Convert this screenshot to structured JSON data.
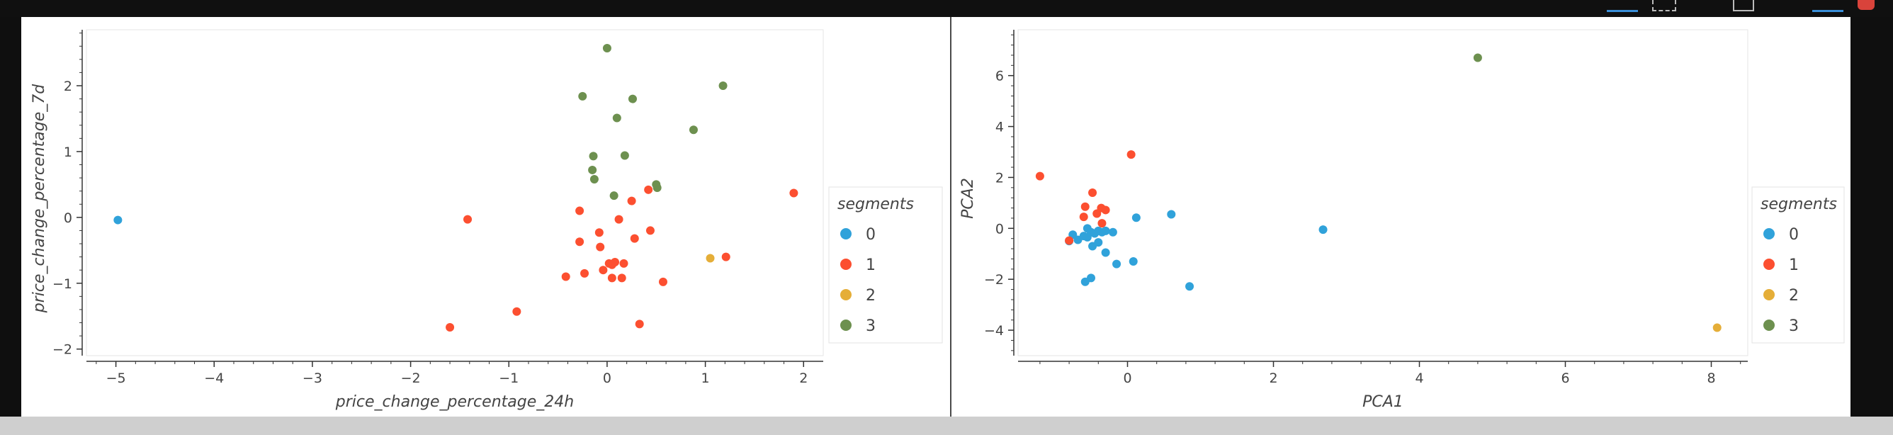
{
  "chart_data": [
    {
      "type": "scatter",
      "title": "",
      "xlabel": "price_change_percentage_24h",
      "ylabel": "price_change_percentage_7d",
      "xlim": [
        -5.3,
        2.2
      ],
      "ylim": [
        -2.1,
        2.85
      ],
      "xticks": [
        -5,
        -4,
        -3,
        -2,
        -1,
        0,
        1,
        2
      ],
      "yticks": [
        -2,
        -1,
        0,
        1,
        2
      ],
      "legend": {
        "title": "segments",
        "position": "right"
      },
      "series": [
        {
          "name": "0",
          "color": "#30a2da",
          "points": [
            [
              -4.98,
              -0.04
            ]
          ]
        },
        {
          "name": "1",
          "color": "#fc4f30",
          "points": [
            [
              -1.42,
              -0.03
            ],
            [
              -1.6,
              -1.67
            ],
            [
              -0.92,
              -1.43
            ],
            [
              -0.42,
              -0.9
            ],
            [
              -0.23,
              -0.85
            ],
            [
              -0.28,
              0.1
            ],
            [
              -0.28,
              -0.37
            ],
            [
              -0.08,
              -0.23
            ],
            [
              -0.07,
              -0.45
            ],
            [
              -0.04,
              -0.8
            ],
            [
              0.02,
              -0.7
            ],
            [
              0.05,
              -0.72
            ],
            [
              0.08,
              -0.68
            ],
            [
              0.05,
              -0.92
            ],
            [
              0.12,
              -0.03
            ],
            [
              0.15,
              -0.92
            ],
            [
              0.17,
              -0.7
            ],
            [
              0.25,
              0.25
            ],
            [
              0.28,
              -0.32
            ],
            [
              0.33,
              -1.62
            ],
            [
              0.42,
              0.42
            ],
            [
              0.44,
              -0.2
            ],
            [
              0.57,
              -0.98
            ],
            [
              1.21,
              -0.6
            ],
            [
              1.9,
              0.37
            ]
          ]
        },
        {
          "name": "2",
          "color": "#e5ae38",
          "points": [
            [
              1.05,
              -0.62
            ]
          ]
        },
        {
          "name": "3",
          "color": "#6d904f",
          "points": [
            [
              0.0,
              2.57
            ],
            [
              -0.25,
              1.84
            ],
            [
              0.26,
              1.8
            ],
            [
              0.1,
              1.51
            ],
            [
              1.18,
              2.0
            ],
            [
              0.88,
              1.33
            ],
            [
              -0.14,
              0.93
            ],
            [
              0.18,
              0.94
            ],
            [
              -0.15,
              0.72
            ],
            [
              -0.13,
              0.58
            ],
            [
              0.07,
              0.33
            ],
            [
              0.5,
              0.5
            ],
            [
              0.51,
              0.45
            ]
          ]
        }
      ]
    },
    {
      "type": "scatter",
      "title": "",
      "xlabel": "PCA1",
      "ylabel": "PCA2",
      "xlim": [
        -1.5,
        8.5
      ],
      "ylim": [
        -5.0,
        7.8
      ],
      "xticks": [
        0,
        2,
        4,
        6,
        8
      ],
      "yticks": [
        -4,
        -2,
        0,
        2,
        4,
        6
      ],
      "legend": {
        "title": "segments",
        "position": "right"
      },
      "series": [
        {
          "name": "0",
          "color": "#30a2da",
          "points": [
            [
              -0.75,
              -0.25
            ],
            [
              -0.8,
              -0.5
            ],
            [
              -0.68,
              -0.45
            ],
            [
              -0.6,
              -0.3
            ],
            [
              -0.55,
              -0.35
            ],
            [
              -0.55,
              0.0
            ],
            [
              -0.5,
              -0.15
            ],
            [
              -0.45,
              -0.2
            ],
            [
              -0.4,
              -0.1
            ],
            [
              -0.35,
              -0.15
            ],
            [
              -0.3,
              -0.1
            ],
            [
              -0.48,
              -0.7
            ],
            [
              -0.4,
              -0.55
            ],
            [
              -0.3,
              -0.95
            ],
            [
              -0.2,
              -0.15
            ],
            [
              -0.15,
              -1.4
            ],
            [
              -0.58,
              -2.1
            ],
            [
              -0.5,
              -1.95
            ],
            [
              0.08,
              -1.3
            ],
            [
              0.12,
              0.42
            ],
            [
              0.6,
              0.55
            ],
            [
              0.85,
              -2.28
            ],
            [
              2.68,
              -0.05
            ]
          ]
        },
        {
          "name": "1",
          "color": "#fc4f30",
          "points": [
            [
              -1.2,
              2.05
            ],
            [
              -0.8,
              -0.48
            ],
            [
              -0.58,
              0.85
            ],
            [
              -0.6,
              0.45
            ],
            [
              -0.48,
              1.4
            ],
            [
              -0.42,
              0.58
            ],
            [
              -0.36,
              0.8
            ],
            [
              -0.3,
              0.72
            ],
            [
              -0.35,
              0.2
            ],
            [
              0.05,
              2.9
            ]
          ]
        },
        {
          "name": "2",
          "color": "#e5ae38",
          "points": [
            [
              8.08,
              -3.9
            ]
          ]
        },
        {
          "name": "3",
          "color": "#6d904f",
          "points": [
            [
              4.8,
              6.7
            ]
          ]
        }
      ]
    }
  ]
}
